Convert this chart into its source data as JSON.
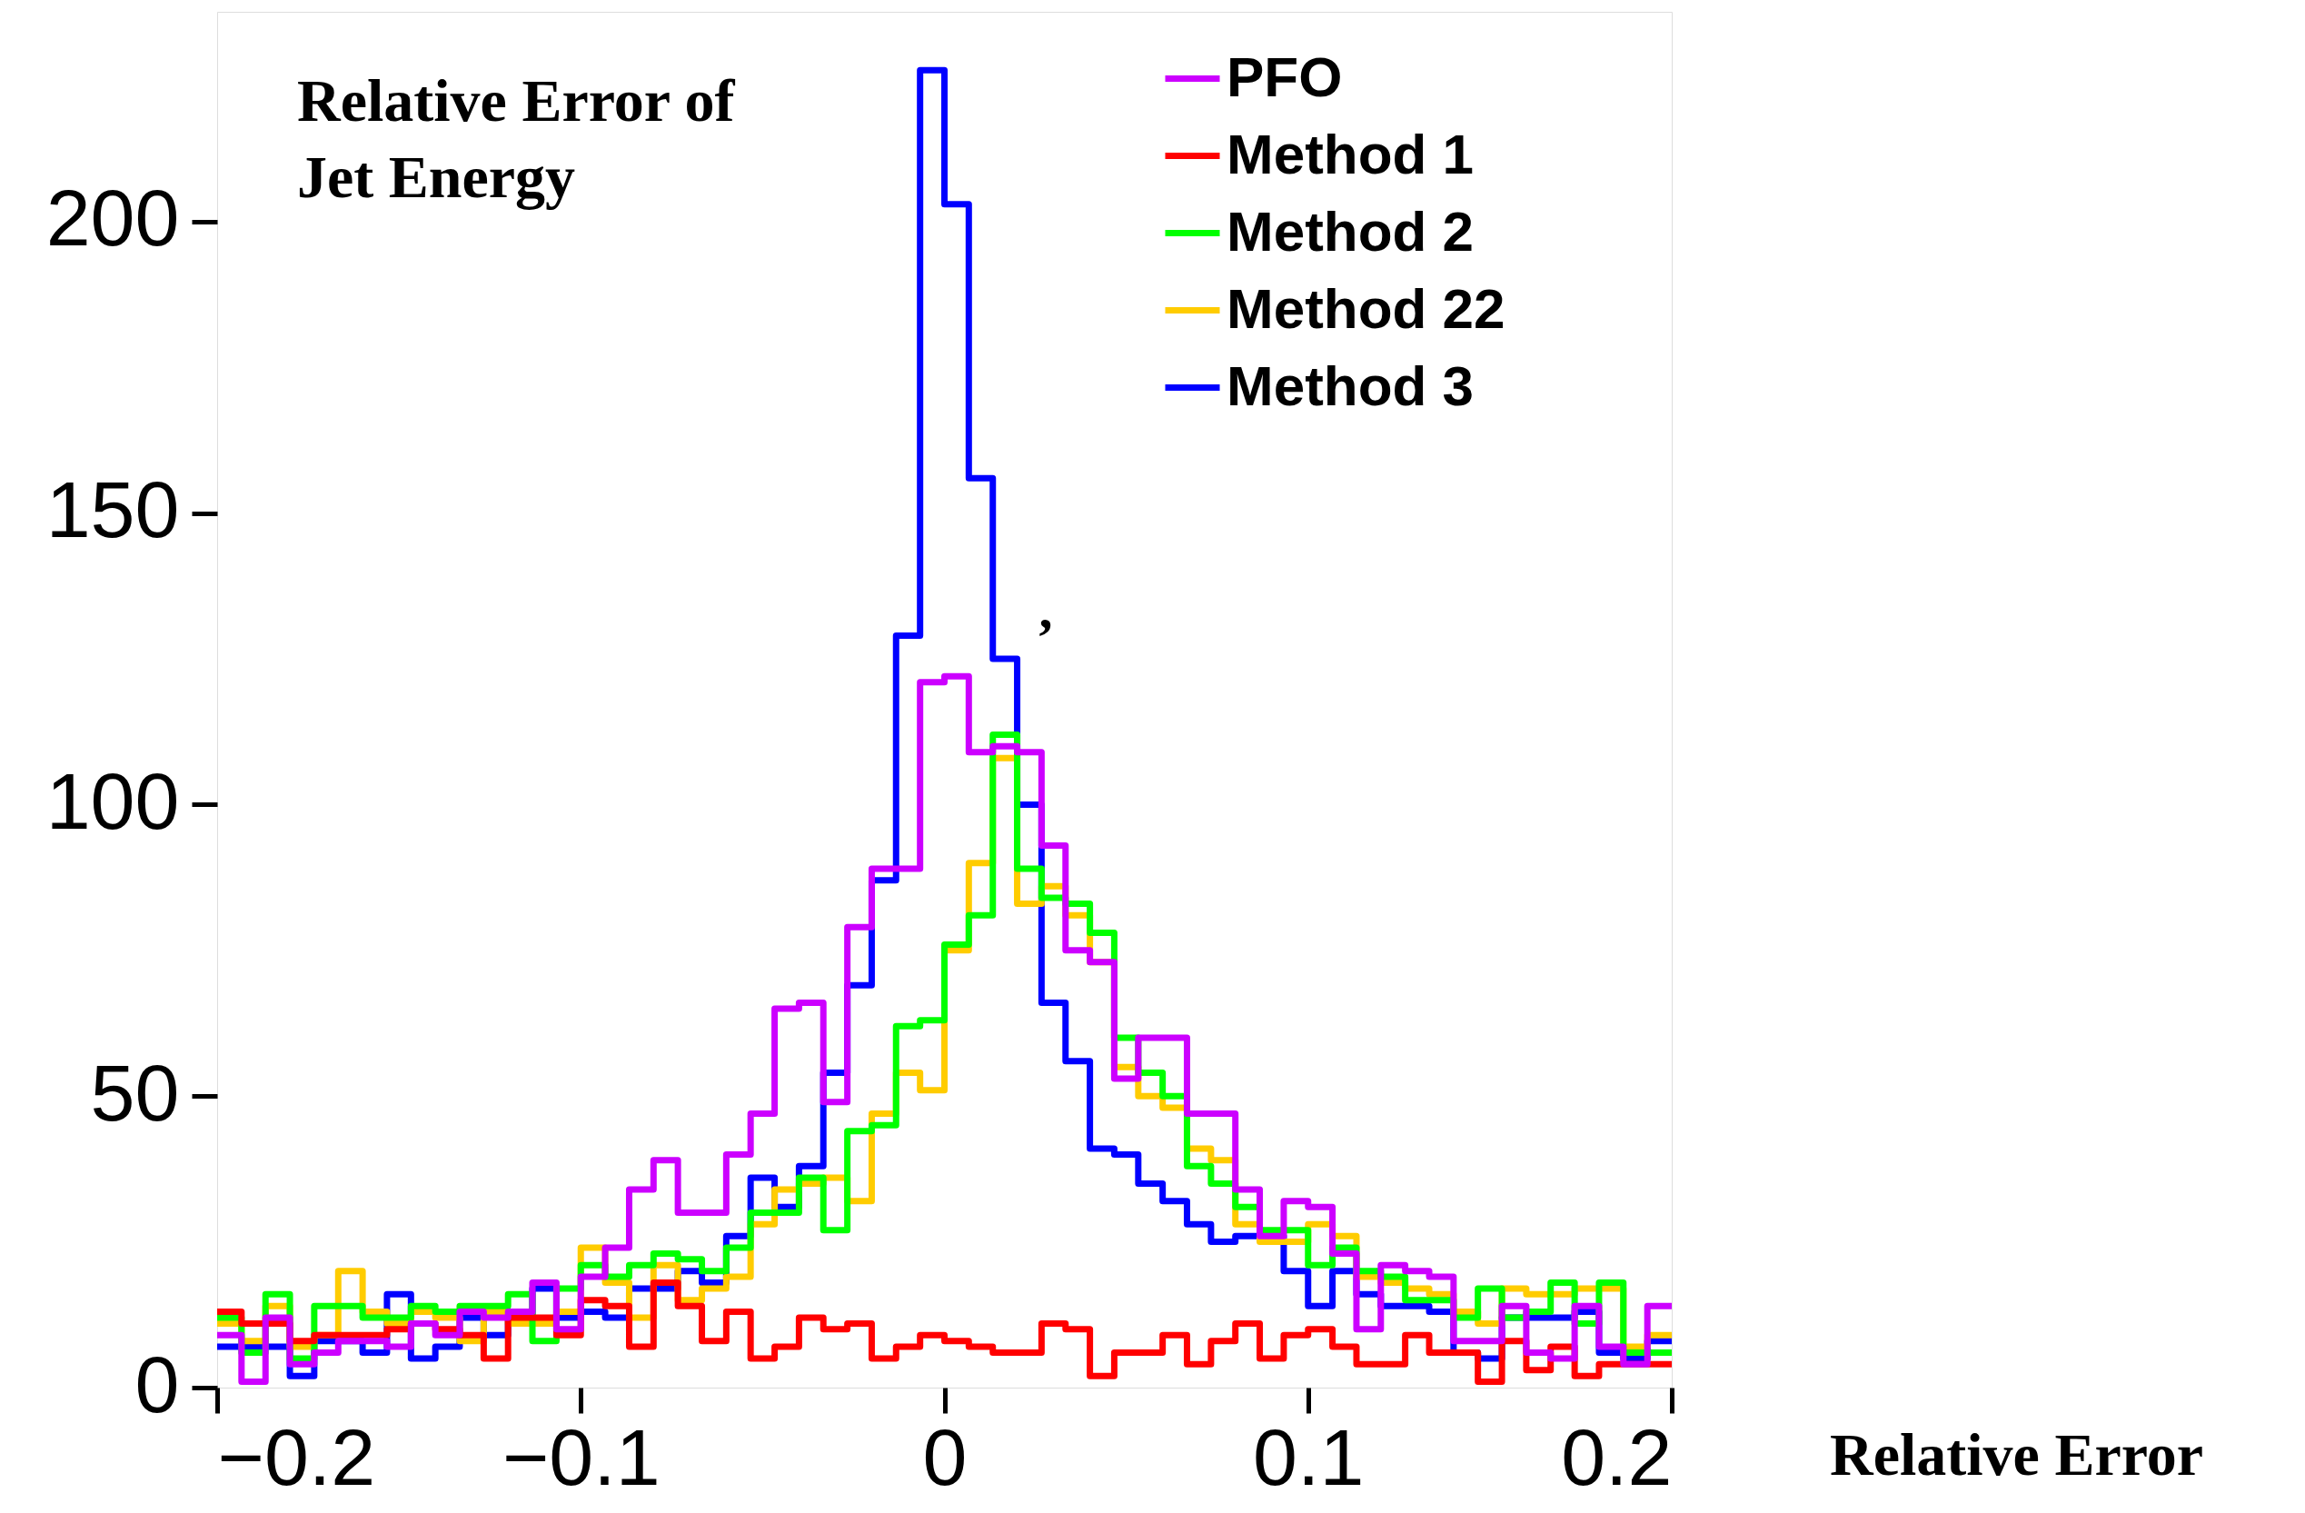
{
  "chart_data": {
    "type": "histogram",
    "title": "Relative Error of\nJet Energy",
    "xlabel": "Relative Error",
    "bins": [
      -0.2,
      -0.1933,
      -0.1867,
      -0.18,
      -0.1733,
      -0.1667,
      -0.16,
      -0.1533,
      -0.1467,
      -0.14,
      -0.1333,
      -0.1267,
      -0.12,
      -0.1133,
      -0.1067,
      -0.1,
      -0.0933,
      -0.0867,
      -0.08,
      -0.0733,
      -0.0667,
      -0.06,
      -0.0533,
      -0.0467,
      -0.04,
      -0.0333,
      -0.0267,
      -0.02,
      -0.0133,
      -0.0067,
      0,
      0.0067,
      0.0133,
      0.02,
      0.0267,
      0.0333,
      0.04,
      0.0467,
      0.0533,
      0.06,
      0.0667,
      0.0733,
      0.08,
      0.0867,
      0.0933,
      0.1,
      0.1067,
      0.1133,
      0.12,
      0.1267,
      0.1333,
      0.14,
      0.1467,
      0.1533,
      0.16,
      0.1667,
      0.1733,
      0.18,
      0.1867,
      0.1933,
      0.2
    ],
    "series": [
      {
        "name": "PFO",
        "color": "#cc00ff",
        "values": [
          9,
          1,
          12,
          4,
          6,
          8,
          8,
          7,
          11,
          9,
          13,
          12,
          13,
          18,
          10,
          19,
          24,
          34,
          39,
          30,
          30,
          40,
          47,
          65,
          66,
          49,
          79,
          89,
          89,
          121,
          122,
          109,
          110,
          109,
          93,
          75,
          73,
          53,
          60,
          60,
          47,
          47,
          34,
          26,
          32,
          31,
          23,
          10,
          21,
          20,
          19,
          8,
          8,
          14,
          6,
          5,
          14,
          7,
          4,
          14
        ]
      },
      {
        "name": "Method 1",
        "color": "#ff0000",
        "values": [
          13,
          11,
          11,
          8,
          9,
          9,
          9,
          10,
          11,
          10,
          9,
          5,
          12,
          12,
          9,
          15,
          14,
          7,
          18,
          14,
          8,
          13,
          5,
          7,
          12,
          10,
          11,
          5,
          7,
          9,
          8,
          7,
          6,
          6,
          11,
          10,
          2,
          6,
          6,
          9,
          4,
          8,
          11,
          5,
          9,
          10,
          7,
          4,
          4,
          9,
          6,
          6,
          1,
          8,
          3,
          7,
          2,
          4,
          4,
          4
        ]
      },
      {
        "name": "Method 2",
        "color": "#00ff00",
        "values": [
          12,
          6,
          16,
          5,
          14,
          14,
          12,
          12,
          14,
          13,
          14,
          14,
          16,
          8,
          17,
          21,
          19,
          21,
          23,
          22,
          20,
          24,
          30,
          30,
          36,
          27,
          44,
          45,
          62,
          63,
          76,
          81,
          112,
          89,
          84,
          83,
          78,
          60,
          54,
          50,
          38,
          35,
          31,
          27,
          27,
          21,
          24,
          20,
          19,
          15,
          15,
          12,
          17,
          12,
          13,
          18,
          11,
          18,
          6,
          6
        ]
      },
      {
        "name": "Method 22",
        "color": "#ffcc00",
        "values": [
          11,
          8,
          14,
          7,
          9,
          20,
          13,
          11,
          13,
          12,
          8,
          13,
          11,
          11,
          13,
          24,
          18,
          12,
          21,
          15,
          17,
          19,
          28,
          34,
          35,
          36,
          32,
          47,
          54,
          51,
          75,
          90,
          108,
          83,
          86,
          81,
          73,
          55,
          50,
          48,
          41,
          39,
          28,
          25,
          25,
          28,
          26,
          19,
          18,
          17,
          16,
          13,
          11,
          17,
          16,
          16,
          17,
          17,
          7,
          9
        ]
      },
      {
        "name": "Method 3",
        "color": "#0000ff",
        "values": [
          7,
          7,
          7,
          2,
          8,
          8,
          6,
          16,
          5,
          7,
          12,
          9,
          12,
          17,
          12,
          13,
          12,
          17,
          17,
          20,
          18,
          26,
          36,
          31,
          38,
          54,
          69,
          87,
          129,
          226,
          203,
          156,
          125,
          100,
          66,
          56,
          41,
          40,
          35,
          32,
          28,
          25,
          26,
          26,
          20,
          14,
          20,
          16,
          14,
          14,
          13,
          6,
          5,
          12,
          12,
          12,
          13,
          6,
          5,
          8
        ]
      }
    ],
    "xlim": [
      -0.2,
      0.2
    ],
    "xticks": [
      {
        "value": -0.2,
        "label": "−0.2"
      },
      {
        "value": -0.1,
        "label": "−0.1"
      },
      0,
      0.1,
      0.2
    ],
    "ylim": [
      0,
      236
    ],
    "yticks": [
      0,
      50,
      100,
      150,
      200
    ],
    "annotations": [
      ","
    ],
    "legend": "top right",
    "grid": false
  }
}
